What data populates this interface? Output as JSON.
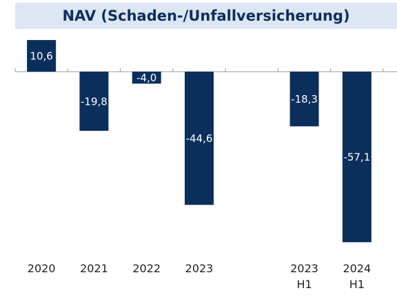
{
  "chart_data": {
    "type": "bar",
    "title": "NAV (Schaden-/Unfallversicherung)",
    "categories": [
      "2020",
      "2021",
      "2022",
      "2023",
      null,
      "2023\nH1",
      "2024\nH1"
    ],
    "values": [
      10.6,
      -19.8,
      -4.0,
      -44.6,
      null,
      -18.3,
      -57.1
    ],
    "value_labels": [
      "10,6",
      "-19,8",
      "-4,0",
      "-44,6",
      null,
      "-18,3",
      "-57,1"
    ],
    "color": "#0b2f5c",
    "ylim": [
      -60,
      12
    ]
  }
}
